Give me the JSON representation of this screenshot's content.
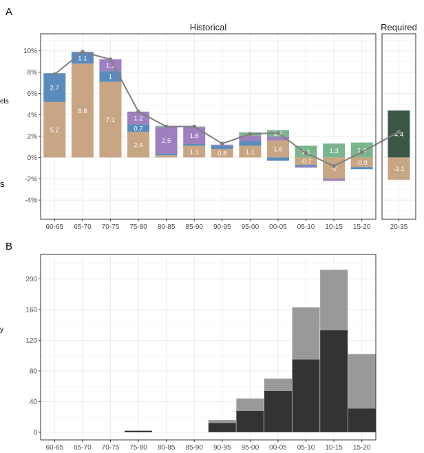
{
  "chart_data": [
    {
      "panel": "A",
      "type": "bar",
      "stacked": true,
      "facets": [
        "Historical",
        "Required"
      ],
      "categories": [
        "60-65",
        "65-70",
        "70-75",
        "75-80",
        "80-85",
        "85-90",
        "90-95",
        "95-00",
        "00-05",
        "05-10",
        "10-15",
        "15-20",
        "20-35"
      ],
      "y_tick_labels": [
        "-4%",
        "-2%",
        "0%",
        "2%",
        "4%",
        "6%",
        "8%",
        "10%"
      ],
      "ylim": [
        -5.8,
        11.6
      ],
      "side_labels": [
        "els",
        "s"
      ],
      "colors": {
        "tan": "#c8a583",
        "blue": "#5a8bbd",
        "purple": "#9f7fc0",
        "green": "#7bb58e",
        "darkgreen": "#3b5846",
        "line": "#7f7f7f"
      },
      "series": [
        {
          "key": "tan",
          "values": [
            5.2,
            8.8,
            7.1,
            2.4,
            0.2,
            1.1,
            0.8,
            1.1,
            1.6,
            -0.7,
            -2,
            -0.9,
            -2.1
          ]
        },
        {
          "key": "blue",
          "values": [
            2.7,
            1.1,
            1.0,
            0.7,
            0.15,
            0.15,
            0.3,
            0.45,
            -0.3,
            -0.15,
            -0.05,
            -0.2,
            0
          ]
        },
        {
          "key": "purple",
          "values": [
            0,
            0,
            1.1,
            1.2,
            2.5,
            1.6,
            0.1,
            0.5,
            0.35,
            -0.1,
            -0.15,
            0.0,
            0
          ]
        },
        {
          "key": "green",
          "values": [
            0,
            0,
            0,
            0,
            0.1,
            0.05,
            0,
            0.3,
            0.6,
            1.1,
            1.3,
            1.4,
            0
          ]
        },
        {
          "key": "darkgreen",
          "values": [
            0,
            0,
            0,
            0,
            0,
            0,
            0,
            0,
            0,
            0,
            0,
            0,
            4.4
          ]
        }
      ],
      "line_values": [
        7.8,
        9.9,
        9.2,
        4.3,
        2.9,
        2.9,
        1.3,
        2.2,
        2.3,
        0.4,
        -0.8,
        0.5,
        2.4
      ],
      "data_labels": [
        {
          "category": "60-65",
          "series": "tan",
          "text": "5.2"
        },
        {
          "category": "60-65",
          "series": "blue",
          "text": "2.7"
        },
        {
          "category": "65-70",
          "series": "tan",
          "text": "8.8"
        },
        {
          "category": "65-70",
          "series": "blue",
          "text": "1.1"
        },
        {
          "category": "70-75",
          "series": "tan",
          "text": "7.1"
        },
        {
          "category": "70-75",
          "series": "blue",
          "text": "1"
        },
        {
          "category": "70-75",
          "series": "purple",
          "text": "1.1"
        },
        {
          "category": "75-80",
          "series": "tan",
          "text": "2.4"
        },
        {
          "category": "75-80",
          "series": "blue",
          "text": "0.7"
        },
        {
          "category": "75-80",
          "series": "purple",
          "text": "1.2"
        },
        {
          "category": "80-85",
          "series": "purple",
          "text": "2.5"
        },
        {
          "category": "85-90",
          "series": "tan",
          "text": "1.1"
        },
        {
          "category": "85-90",
          "series": "purple",
          "text": "1.6"
        },
        {
          "category": "90-95",
          "series": "tan",
          "text": "0.8"
        },
        {
          "category": "95-00",
          "series": "tan",
          "text": "1.1"
        },
        {
          "category": "00-05",
          "series": "tan",
          "text": "1.6"
        },
        {
          "category": "00-05",
          "series": "green",
          "text": "0.6"
        },
        {
          "category": "05-10",
          "series": "tan",
          "text": "-0.7"
        },
        {
          "category": "05-10",
          "series": "green",
          "text": "1.1"
        },
        {
          "category": "10-15",
          "series": "tan",
          "text": "-2"
        },
        {
          "category": "10-15",
          "series": "green",
          "text": "1.3"
        },
        {
          "category": "15-20",
          "series": "tan",
          "text": "-0.9"
        },
        {
          "category": "15-20",
          "series": "green",
          "text": "1.4"
        },
        {
          "category": "20-35",
          "series": "tan",
          "text": "-2.1"
        },
        {
          "category": "20-35",
          "series": "darkgreen",
          "text": "4.4"
        }
      ]
    },
    {
      "panel": "B",
      "type": "bar",
      "stacked": true,
      "categories": [
        "60-65",
        "65-70",
        "70-75",
        "75-80",
        "80-85",
        "85-90",
        "90-95",
        "95-00",
        "00-05",
        "05-10",
        "10-15",
        "15-20"
      ],
      "y_tick_labels": [
        "0",
        "40",
        "80",
        "120",
        "160",
        "200"
      ],
      "ylim": [
        -10,
        232
      ],
      "side_labels": [
        "y"
      ],
      "colors": {
        "dark": "#333333",
        "light": "#999999"
      },
      "series": [
        {
          "key": "dark",
          "values": [
            0,
            0,
            0,
            2,
            0,
            0,
            12,
            28,
            54,
            95,
            133,
            31
          ]
        },
        {
          "key": "light",
          "values": [
            0,
            0,
            0,
            0,
            0,
            0,
            4,
            16,
            16,
            68,
            79,
            71
          ]
        }
      ]
    }
  ],
  "panel_labels": {
    "a": "A",
    "b": "B"
  }
}
